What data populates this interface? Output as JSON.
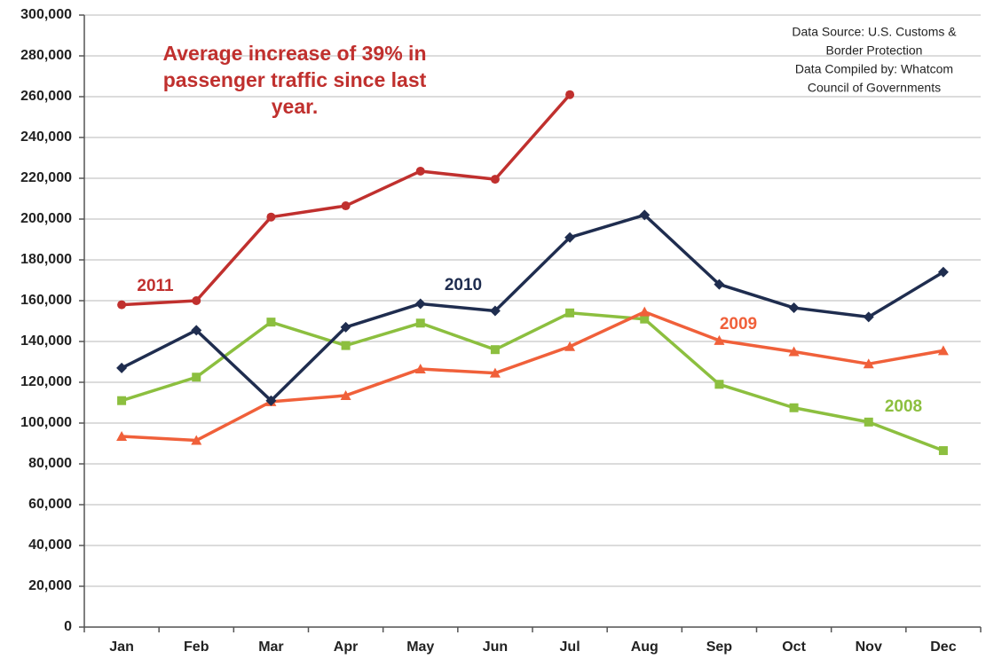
{
  "chart_data": {
    "type": "line",
    "categories": [
      "Jan",
      "Feb",
      "Mar",
      "Apr",
      "May",
      "Jun",
      "Jul",
      "Aug",
      "Sep",
      "Oct",
      "Nov",
      "Dec"
    ],
    "series": [
      {
        "name": "2011",
        "color": "#c0302e",
        "marker": "circle",
        "values": [
          158000,
          160000,
          201000,
          206500,
          223500,
          219500,
          261000,
          null,
          null,
          null,
          null,
          null
        ]
      },
      {
        "name": "2010",
        "color": "#1f2d4f",
        "marker": "diamond",
        "values": [
          127000,
          145500,
          111000,
          147000,
          158500,
          155000,
          191000,
          202000,
          168000,
          156500,
          152000,
          174000
        ]
      },
      {
        "name": "2009",
        "color": "#f0603a",
        "marker": "triangle",
        "values": [
          93500,
          91500,
          110500,
          113500,
          126500,
          124500,
          137500,
          154500,
          140500,
          135000,
          129000,
          135500
        ]
      },
      {
        "name": "2008",
        "color": "#8cbf3f",
        "marker": "square",
        "values": [
          111000,
          122500,
          149500,
          138000,
          149000,
          136000,
          154000,
          151000,
          119000,
          107500,
          100500,
          86500
        ]
      }
    ],
    "ylim": [
      0,
      300000
    ],
    "yticks": [
      0,
      {
        "value": 20000,
        "label": "20,000"
      },
      {
        "value": 40000,
        "label": "40,000"
      },
      {
        "value": 60000,
        "label": "60,000"
      },
      {
        "value": 80000,
        "label": "80,000"
      },
      {
        "value": 100000,
        "label": "100,000"
      },
      {
        "value": 120000,
        "label": "120,000"
      },
      {
        "value": 140000,
        "label": "140,000"
      },
      {
        "value": 160000,
        "label": "160,000"
      },
      {
        "value": 180000,
        "label": "180,000"
      },
      {
        "value": 200000,
        "label": "200,000"
      },
      {
        "value": 220000,
        "label": "220,000"
      },
      {
        "value": 240000,
        "label": "240,000"
      },
      {
        "value": 260000,
        "label": "260,000"
      },
      {
        "value": 280000,
        "label": "280,000"
      },
      {
        "value": 300000,
        "label": "300,000"
      }
    ],
    "grid": true,
    "annotation": [
      "Average increase of 39% in",
      "passenger traffic since last",
      "year."
    ],
    "source": [
      "Data Source: U.S. Customs &",
      "Border Protection",
      "Data Compiled by: Whatcom",
      "Council of Governments"
    ]
  }
}
